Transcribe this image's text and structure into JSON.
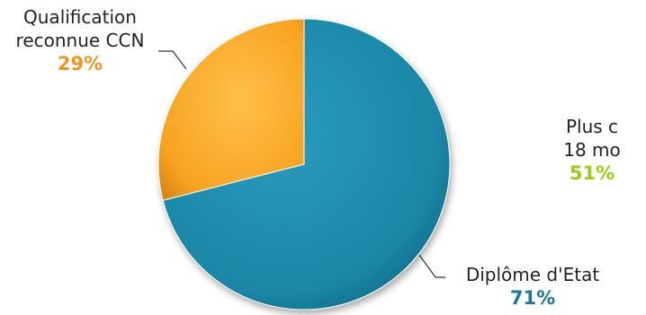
{
  "chart_data": {
    "type": "pie",
    "slices": [
      {
        "label": "Diplôme d'Etat",
        "value": 71,
        "value_label": "71%",
        "color": "#1b86a6"
      },
      {
        "label": "Qualification reconnue CCN",
        "label_lines": [
          "Qualification",
          "reconnue CCN"
        ],
        "value": 29,
        "value_label": "29%",
        "color": "#f7a321"
      }
    ],
    "label_value_colors": {
      "Diplôme d'Etat": "#1b7898",
      "Qualification reconnue CCN": "#f0951e"
    },
    "partial_label": {
      "lines": [
        "Plus c",
        "18 mo"
      ],
      "value_label": "51%",
      "value_color": "#9acd1a"
    }
  }
}
